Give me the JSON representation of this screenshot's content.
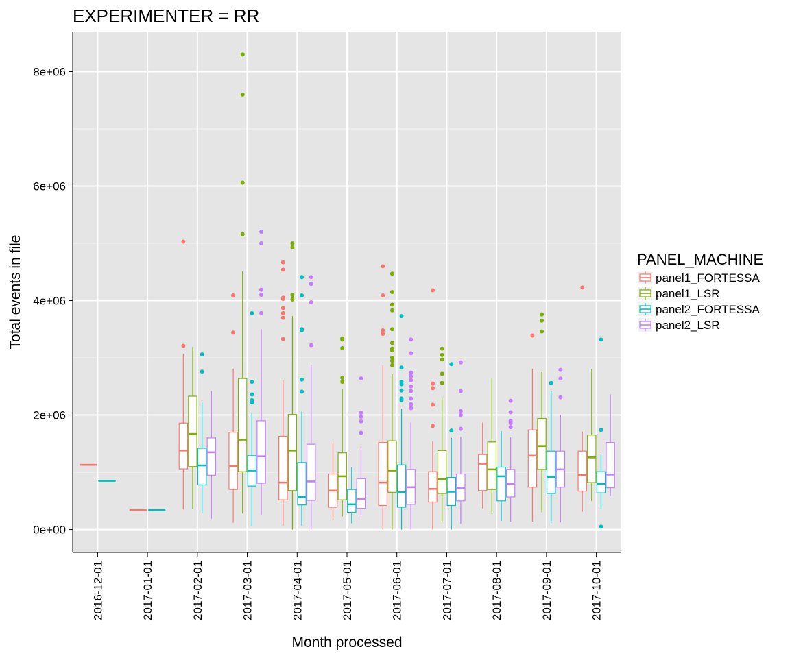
{
  "chart_data": {
    "type": "box",
    "title": "EXPERIMENTER = RR",
    "xlabel": "Month processed",
    "ylabel": "Total events in file",
    "ylim": [
      -400000,
      8700000
    ],
    "grid": true,
    "legend_position": "right",
    "y_ticks": [
      {
        "value": 0,
        "label": "0e+00"
      },
      {
        "value": 2000000,
        "label": "2e+06"
      },
      {
        "value": 4000000,
        "label": "4e+06"
      },
      {
        "value": 6000000,
        "label": "6e+06"
      },
      {
        "value": 8000000,
        "label": "8e+06"
      }
    ],
    "categories": [
      "2016-12-01",
      "2017-01-01",
      "2017-02-01",
      "2017-03-01",
      "2017-04-01",
      "2017-05-01",
      "2017-06-01",
      "2017-07-01",
      "2017-08-01",
      "2017-09-01",
      "2017-10-01"
    ],
    "legend": {
      "title": "PANEL_MACHINE",
      "entries": [
        "panel1_FORTESSA",
        "panel1_LSR",
        "panel2_FORTESSA",
        "panel2_LSR"
      ]
    },
    "series": [
      {
        "name": "panel1_FORTESSA",
        "color": "#F8766D",
        "boxes": [
          {
            "category": "2016-12-01",
            "slot": 0,
            "slots": 2,
            "min": 1130000,
            "q1": 1130000,
            "median": 1130000,
            "q3": 1130000,
            "max": 1130000,
            "outliers": []
          },
          {
            "category": "2017-01-01",
            "slot": 0,
            "slots": 2,
            "min": 340000,
            "q1": 340000,
            "median": 340000,
            "q3": 340000,
            "max": 340000,
            "outliers": []
          },
          {
            "category": "2017-02-01",
            "slot": 0,
            "slots": 4,
            "min": 350000,
            "q1": 1060000,
            "median": 1380000,
            "q3": 1860000,
            "max": 3070000,
            "outliers": [
              3210000,
              5030000
            ]
          },
          {
            "category": "2017-03-01",
            "slot": 0,
            "slots": 4,
            "min": 120000,
            "q1": 700000,
            "median": 1110000,
            "q3": 1700000,
            "max": 2810000,
            "outliers": [
              3440000,
              4090000
            ]
          },
          {
            "category": "2017-04-01",
            "slot": 0,
            "slots": 4,
            "min": 70000,
            "q1": 520000,
            "median": 820000,
            "q3": 1630000,
            "max": 2610000,
            "outliers": [
              3330000,
              3700000,
              3780000,
              3870000,
              4030000,
              4050000,
              4540000,
              4670000
            ]
          },
          {
            "category": "2017-05-01",
            "slot": 0,
            "slots": 4,
            "min": 170000,
            "q1": 390000,
            "median": 680000,
            "q3": 970000,
            "max": 1540000,
            "outliers": []
          },
          {
            "category": "2017-06-01",
            "slot": 0,
            "slots": 4,
            "min": 0,
            "q1": 420000,
            "median": 820000,
            "q3": 1520000,
            "max": 2870000,
            "outliers": [
              3420000,
              3480000,
              4090000,
              4600000
            ]
          },
          {
            "category": "2017-07-01",
            "slot": 0,
            "slots": 4,
            "min": 0,
            "q1": 480000,
            "median": 710000,
            "q3": 1010000,
            "max": 1540000,
            "outliers": [
              1810000,
              2180000,
              2470000,
              2550000,
              4180000
            ]
          },
          {
            "category": "2017-08-01",
            "slot": 0,
            "slots": 4,
            "min": 370000,
            "q1": 680000,
            "median": 1150000,
            "q3": 1310000,
            "max": 1870000,
            "outliers": []
          },
          {
            "category": "2017-09-01",
            "slot": 0,
            "slots": 4,
            "min": 140000,
            "q1": 740000,
            "median": 1290000,
            "q3": 1740000,
            "max": 2810000,
            "outliers": [
              3390000
            ]
          },
          {
            "category": "2017-10-01",
            "slot": 0,
            "slots": 4,
            "min": 310000,
            "q1": 670000,
            "median": 950000,
            "q3": 1370000,
            "max": 1710000,
            "outliers": [
              4230000
            ]
          }
        ]
      },
      {
        "name": "panel1_LSR",
        "color": "#7CAE00",
        "boxes": [
          {
            "category": "2017-02-01",
            "slot": 1,
            "slots": 4,
            "min": 360000,
            "q1": 1100000,
            "median": 1670000,
            "q3": 2330000,
            "max": 3190000,
            "outliers": []
          },
          {
            "category": "2017-03-01",
            "slot": 1,
            "slots": 4,
            "min": 280000,
            "q1": 1010000,
            "median": 1570000,
            "q3": 2640000,
            "max": 4510000,
            "outliers": [
              5160000,
              6060000,
              7600000,
              8300000
            ]
          },
          {
            "category": "2017-04-01",
            "slot": 1,
            "slots": 4,
            "min": 0,
            "q1": 680000,
            "median": 1380000,
            "q3": 2010000,
            "max": 3730000,
            "outliers": [
              4020000,
              4100000,
              4930000,
              5000000
            ]
          },
          {
            "category": "2017-05-01",
            "slot": 1,
            "slots": 4,
            "min": 230000,
            "q1": 520000,
            "median": 930000,
            "q3": 1340000,
            "max": 2450000,
            "outliers": [
              2580000,
              2650000,
              3170000,
              3320000,
              3340000
            ]
          },
          {
            "category": "2017-06-01",
            "slot": 1,
            "slots": 4,
            "min": 0,
            "q1": 650000,
            "median": 1030000,
            "q3": 1550000,
            "max": 2720000,
            "outliers": [
              2870000,
              2950000,
              3000000,
              3130000,
              3160000,
              3260000,
              3500000,
              3830000,
              3930000,
              4150000,
              4470000
            ]
          },
          {
            "category": "2017-07-01",
            "slot": 1,
            "slots": 4,
            "min": 130000,
            "q1": 630000,
            "median": 880000,
            "q3": 1380000,
            "max": 2310000,
            "outliers": [
              2560000,
              2720000,
              2970000,
              3050000,
              3160000
            ]
          },
          {
            "category": "2017-08-01",
            "slot": 1,
            "slots": 4,
            "min": 270000,
            "q1": 700000,
            "median": 1050000,
            "q3": 1530000,
            "max": 2640000,
            "outliers": []
          },
          {
            "category": "2017-09-01",
            "slot": 1,
            "slots": 4,
            "min": 300000,
            "q1": 1050000,
            "median": 1460000,
            "q3": 1940000,
            "max": 2750000,
            "outliers": [
              3460000,
              3650000,
              3760000
            ]
          },
          {
            "category": "2017-10-01",
            "slot": 1,
            "slots": 4,
            "min": 500000,
            "q1": 820000,
            "median": 1260000,
            "q3": 1650000,
            "max": 2810000,
            "outliers": []
          }
        ]
      },
      {
        "name": "panel2_FORTESSA",
        "color": "#00BFC4",
        "boxes": [
          {
            "category": "2016-12-01",
            "slot": 1,
            "slots": 2,
            "min": 850000,
            "q1": 850000,
            "median": 850000,
            "q3": 850000,
            "max": 850000,
            "outliers": []
          },
          {
            "category": "2017-01-01",
            "slot": 1,
            "slots": 2,
            "min": 340000,
            "q1": 340000,
            "median": 340000,
            "q3": 340000,
            "max": 340000,
            "outliers": []
          },
          {
            "category": "2017-02-01",
            "slot": 2,
            "slots": 4,
            "min": 280000,
            "q1": 780000,
            "median": 1120000,
            "q3": 1420000,
            "max": 2220000,
            "outliers": [
              2760000,
              3060000
            ]
          },
          {
            "category": "2017-03-01",
            "slot": 2,
            "slots": 4,
            "min": 60000,
            "q1": 760000,
            "median": 1030000,
            "q3": 1290000,
            "max": 2030000,
            "outliers": [
              2220000,
              2260000,
              2360000,
              2580000,
              3780000
            ]
          },
          {
            "category": "2017-04-01",
            "slot": 2,
            "slots": 4,
            "min": 70000,
            "q1": 430000,
            "median": 570000,
            "q3": 1170000,
            "max": 2060000,
            "outliers": [
              2410000,
              2620000,
              3480000,
              3500000,
              4090000,
              4410000
            ]
          },
          {
            "category": "2017-05-01",
            "slot": 2,
            "slots": 4,
            "min": 110000,
            "q1": 300000,
            "median": 440000,
            "q3": 700000,
            "max": 1090000,
            "outliers": []
          },
          {
            "category": "2017-06-01",
            "slot": 2,
            "slots": 4,
            "min": 0,
            "q1": 390000,
            "median": 650000,
            "q3": 1130000,
            "max": 2110000,
            "outliers": [
              2260000,
              2290000,
              2430000,
              2540000,
              2580000,
              2830000,
              3730000
            ]
          },
          {
            "category": "2017-07-01",
            "slot": 2,
            "slots": 4,
            "min": 0,
            "q1": 420000,
            "median": 660000,
            "q3": 910000,
            "max": 1600000,
            "outliers": [
              1730000,
              2890000
            ]
          },
          {
            "category": "2017-08-01",
            "slot": 2,
            "slots": 4,
            "min": 150000,
            "q1": 500000,
            "median": 930000,
            "q3": 1090000,
            "max": 1720000,
            "outliers": []
          },
          {
            "category": "2017-09-01",
            "slot": 2,
            "slots": 4,
            "min": 110000,
            "q1": 630000,
            "median": 920000,
            "q3": 1370000,
            "max": 2420000,
            "outliers": [
              2560000
            ]
          },
          {
            "category": "2017-10-01",
            "slot": 2,
            "slots": 4,
            "min": 360000,
            "q1": 640000,
            "median": 800000,
            "q3": 1010000,
            "max": 1310000,
            "outliers": [
              50000,
              1740000,
              3320000
            ]
          }
        ]
      },
      {
        "name": "panel2_LSR",
        "color": "#C77CFF",
        "boxes": [
          {
            "category": "2017-02-01",
            "slot": 3,
            "slots": 4,
            "min": 190000,
            "q1": 950000,
            "median": 1350000,
            "q3": 1600000,
            "max": 2420000,
            "outliers": []
          },
          {
            "category": "2017-03-01",
            "slot": 3,
            "slots": 4,
            "min": 250000,
            "q1": 810000,
            "median": 1280000,
            "q3": 1900000,
            "max": 3500000,
            "outliers": [
              3780000,
              4100000,
              4190000,
              5000000,
              5200000
            ]
          },
          {
            "category": "2017-04-01",
            "slot": 3,
            "slots": 4,
            "min": 0,
            "q1": 510000,
            "median": 840000,
            "q3": 1490000,
            "max": 2880000,
            "outliers": [
              3220000,
              3970000,
              4290000,
              4410000
            ]
          },
          {
            "category": "2017-05-01",
            "slot": 3,
            "slots": 4,
            "min": 210000,
            "q1": 370000,
            "median": 530000,
            "q3": 890000,
            "max": 1450000,
            "outliers": [
              1690000,
              1890000,
              1970000,
              2040000,
              2640000
            ]
          },
          {
            "category": "2017-06-01",
            "slot": 3,
            "slots": 4,
            "min": 0,
            "q1": 440000,
            "median": 740000,
            "q3": 1050000,
            "max": 1870000,
            "outliers": [
              2120000,
              2190000,
              2290000,
              2420000,
              2500000,
              2610000,
              2680000,
              2740000,
              3080000,
              3320000
            ]
          },
          {
            "category": "2017-07-01",
            "slot": 3,
            "slots": 4,
            "min": 100000,
            "q1": 500000,
            "median": 730000,
            "q3": 970000,
            "max": 1620000,
            "outliers": [
              1760000,
              2000000,
              2070000,
              2420000,
              2920000
            ]
          },
          {
            "category": "2017-08-01",
            "slot": 3,
            "slots": 4,
            "min": 140000,
            "q1": 570000,
            "median": 800000,
            "q3": 1050000,
            "max": 1610000,
            "outliers": [
              1790000,
              1860000,
              1900000,
              2050000,
              2250000
            ]
          },
          {
            "category": "2017-09-01",
            "slot": 3,
            "slots": 4,
            "min": 130000,
            "q1": 740000,
            "median": 1050000,
            "q3": 1370000,
            "max": 2000000,
            "outliers": [
              2310000,
              2640000,
              2790000
            ]
          },
          {
            "category": "2017-10-01",
            "slot": 3,
            "slots": 4,
            "min": 590000,
            "q1": 730000,
            "median": 960000,
            "q3": 1520000,
            "max": 2360000,
            "outliers": []
          }
        ]
      }
    ]
  }
}
